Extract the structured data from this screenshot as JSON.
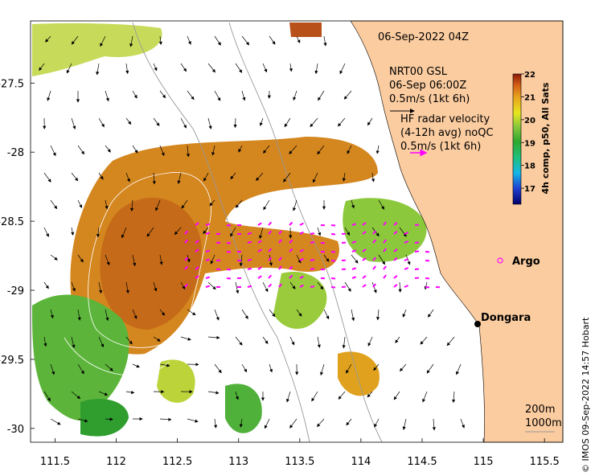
{
  "date_label": "06-Sep-2022 04Z",
  "model": {
    "name": "NRT00 GSL",
    "time": "06-Sep 06:00Z",
    "scale": "0.5m/s (1kt 6h)"
  },
  "radar": {
    "line1": "HF radar velocity",
    "line2": "(4-12h avg) noQC",
    "scale": "0.5m/s (1kt 6h)"
  },
  "colorbar": {
    "title": "4h comp, p50, All Sats",
    "ticks": [
      "22",
      "21",
      "20",
      "19",
      "18",
      "17"
    ],
    "range": [
      16.3,
      22
    ]
  },
  "places": {
    "argo": "Argo",
    "dongara": "Dongara"
  },
  "depth_contours": {
    "c200": "200m",
    "c1000": "1000m"
  },
  "credit": "© IMOS 09-Sep-2022 14:57 Hobart",
  "axes": {
    "x_ticks": [
      "111.5",
      "112",
      "112.5",
      "113",
      "113.5",
      "114",
      "114.5",
      "115",
      "115.5"
    ],
    "y_ticks": [
      "-27.5",
      "-28",
      "-28.5",
      "-29",
      "-29.5",
      "-30"
    ],
    "xlim": [
      111.3,
      115.65
    ],
    "ylim": [
      -30.1,
      -27.05
    ]
  },
  "colors": {
    "land": "#fbcca0",
    "sst_warm": "#d4861f",
    "sst_cool": "#2f9e2f",
    "radar_vectors": "#ff00ff"
  }
}
